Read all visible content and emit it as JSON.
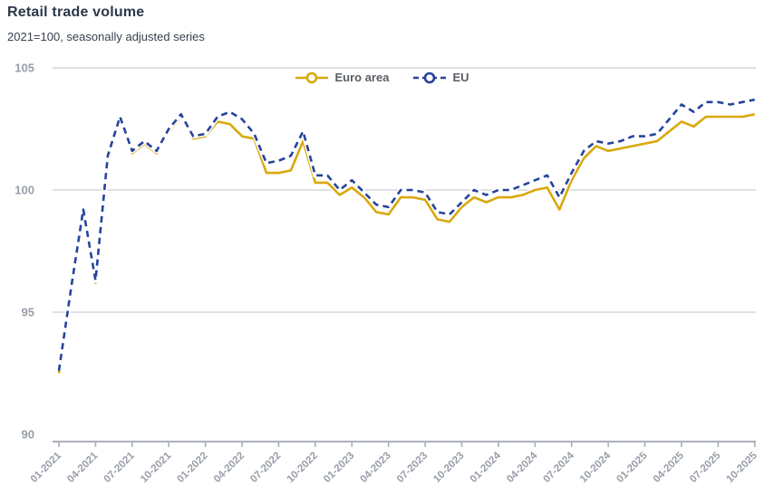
{
  "header": {
    "title": "Retail trade volume",
    "subtitle": "2021=100, seasonally adjusted series"
  },
  "colors": {
    "euro_area": "#d9a80c",
    "eu": "#27439b",
    "gridline": "#c9cdd3",
    "axis": "#aab0b8",
    "tick_label": "#989ea8",
    "line_casing": "#ffffff"
  },
  "chart_data": {
    "type": "line",
    "title": "Retail trade volume",
    "subtitle": "2021=100, seasonally adjusted series",
    "x": [
      "01-2021",
      "02-2021",
      "03-2021",
      "04-2021",
      "05-2021",
      "06-2021",
      "07-2021",
      "08-2021",
      "09-2021",
      "10-2021",
      "11-2021",
      "12-2021",
      "01-2022",
      "02-2022",
      "03-2022",
      "04-2022",
      "05-2022",
      "06-2022",
      "07-2022",
      "08-2022",
      "09-2022",
      "10-2022",
      "11-2022",
      "12-2022",
      "01-2023",
      "02-2023",
      "03-2023",
      "04-2023",
      "05-2023",
      "06-2023",
      "07-2023",
      "08-2023",
      "09-2023",
      "10-2023",
      "11-2023",
      "12-2023",
      "01-2024",
      "02-2024",
      "03-2024",
      "04-2024",
      "05-2024",
      "06-2024",
      "07-2024",
      "08-2024",
      "09-2024",
      "10-2024",
      "11-2024",
      "12-2024",
      "01-2025",
      "02-2025",
      "03-2025",
      "04-2025",
      "05-2025",
      "06-2025",
      "07-2025",
      "08-2025",
      "09-2025",
      "10-2025"
    ],
    "xtick_every": 3,
    "xtick_labels": [
      "01-2021",
      "04-2021",
      "07-2021",
      "10-2021",
      "01-2022",
      "04-2022",
      "07-2022",
      "10-2022",
      "01-2023",
      "04-2023",
      "07-2023",
      "10-2023",
      "01-2024",
      "04-2024",
      "07-2024",
      "10-2024",
      "01-2025",
      "04-2025",
      "07-2025",
      "10-2025"
    ],
    "series": [
      {
        "name": "Euro area",
        "dash": "solid",
        "values": [
          92.5,
          95.9,
          99.1,
          96.2,
          101.3,
          102.9,
          101.5,
          101.9,
          101.5,
          102.4,
          103.0,
          102.1,
          102.2,
          102.8,
          102.7,
          102.2,
          102.1,
          100.7,
          100.7,
          100.8,
          102.0,
          100.3,
          100.3,
          99.8,
          100.1,
          99.7,
          99.1,
          99.0,
          99.7,
          99.7,
          99.6,
          98.8,
          98.7,
          99.3,
          99.7,
          99.5,
          99.7,
          99.7,
          99.8,
          100.0,
          100.1,
          99.2,
          100.4,
          101.3,
          101.8,
          101.6,
          101.7,
          101.8,
          101.9,
          102.0,
          102.4,
          102.8,
          102.6,
          103.0,
          103.0,
          103.0,
          103.0,
          103.1
        ]
      },
      {
        "name": "EU",
        "dash": "dashed",
        "values": [
          92.6,
          96.0,
          99.2,
          96.3,
          101.4,
          103.0,
          101.6,
          102.0,
          101.6,
          102.5,
          103.1,
          102.2,
          102.3,
          103.0,
          103.2,
          102.9,
          102.3,
          101.1,
          101.2,
          101.4,
          102.4,
          100.6,
          100.6,
          100.0,
          100.4,
          99.9,
          99.4,
          99.3,
          100.0,
          100.0,
          99.9,
          99.1,
          99.0,
          99.5,
          100.0,
          99.8,
          100.0,
          100.0,
          100.2,
          100.4,
          100.6,
          99.7,
          100.7,
          101.6,
          102.0,
          101.9,
          102.0,
          102.2,
          102.2,
          102.3,
          102.9,
          103.5,
          103.2,
          103.6,
          103.6,
          103.5,
          103.6,
          103.7
        ]
      }
    ],
    "ylim": [
      89.6,
      105
    ],
    "yticks": [
      90,
      95,
      100,
      105
    ],
    "gridlines": [
      95,
      100,
      105
    ],
    "grid": "horizontal",
    "legend_position": "top-center"
  }
}
